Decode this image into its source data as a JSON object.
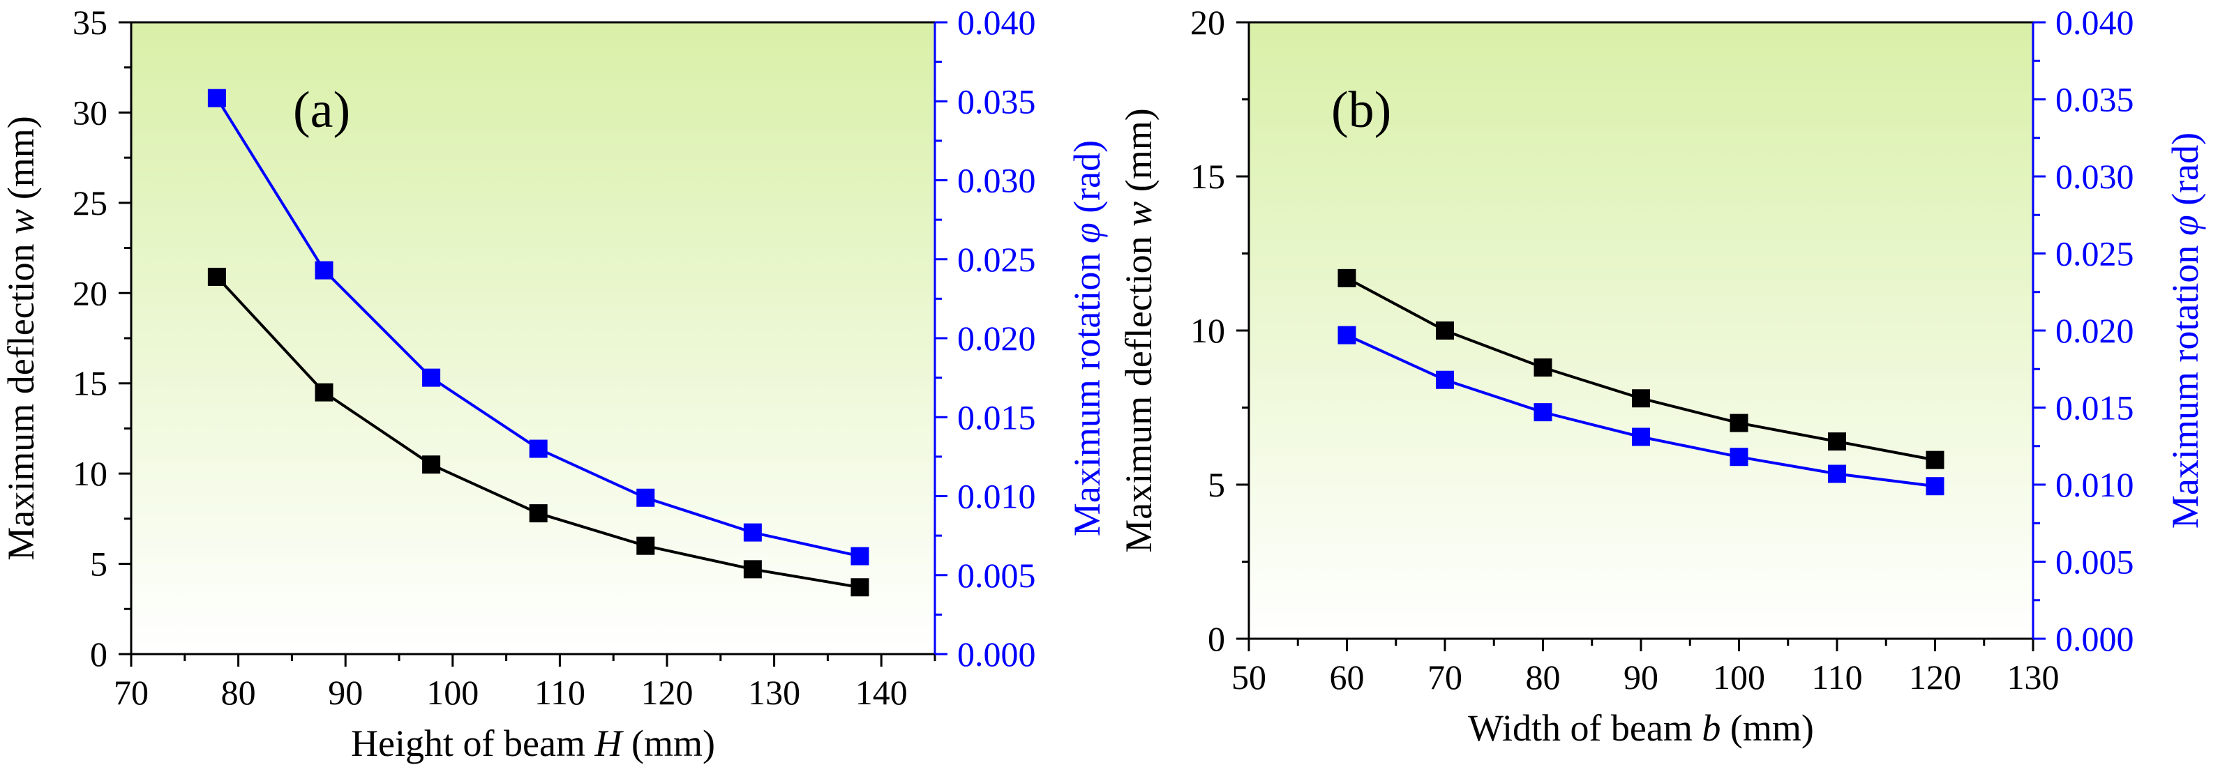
{
  "colors": {
    "left_axis": "#000000",
    "right_axis": "#0000ff",
    "panel_gradient_top": "#d9f0a8",
    "panel_gradient_bottom": "#ffffff"
  },
  "chart_data": [
    {
      "type": "line",
      "panel_label": "(a)",
      "xlabel": "Height of beam H (mm)",
      "xlabel_parts": [
        "Height of beam ",
        "H",
        " (mm)"
      ],
      "ylabel": "Maximum deflection w (mm)",
      "ylabel_parts": [
        "Maximum deflection ",
        "w",
        " (mm)"
      ],
      "y2label": "Maximum rotation φ (rad)",
      "y2label_parts": [
        "Maximum rotation ",
        "φ",
        " (rad)"
      ],
      "xlim": [
        70,
        145
      ],
      "ylim": [
        0,
        35
      ],
      "y2lim": [
        0,
        0.04
      ],
      "xticks": [
        70,
        80,
        90,
        100,
        110,
        120,
        130,
        140
      ],
      "xtick_labels": [
        "70",
        "80",
        "90",
        "100",
        "110",
        "120",
        "130",
        "140"
      ],
      "yticks": [
        0,
        5,
        10,
        15,
        20,
        25,
        30,
        35
      ],
      "ytick_labels": [
        "0",
        "5",
        "10",
        "15",
        "20",
        "25",
        "30",
        "35"
      ],
      "y2ticks": [
        0,
        0.005,
        0.01,
        0.015,
        0.02,
        0.025,
        0.03,
        0.035,
        0.04
      ],
      "y2tick_labels": [
        "0.000",
        "0.005",
        "0.010",
        "0.015",
        "0.020",
        "0.025",
        "0.030",
        "0.035",
        "0.040"
      ],
      "grid": false,
      "x": [
        78,
        88,
        98,
        108,
        118,
        128,
        138
      ],
      "series": [
        {
          "axis": "left",
          "color": "#000000",
          "values": [
            20.9,
            14.5,
            10.5,
            7.8,
            6.0,
            4.7,
            3.7
          ]
        },
        {
          "axis": "right",
          "color": "#0000ff",
          "values": [
            0.0352,
            0.0243,
            0.0175,
            0.013,
            0.0099,
            0.0077,
            0.0062
          ]
        }
      ]
    },
    {
      "type": "line",
      "panel_label": "(b)",
      "xlabel": "Width of beam b (mm)",
      "xlabel_parts": [
        "Width of beam ",
        "b",
        " (mm)"
      ],
      "ylabel": "Maximum deflection w (mm)",
      "ylabel_parts": [
        "Maximum deflection ",
        "w",
        " (mm)"
      ],
      "y2label": "Maximum rotation φ (rad)",
      "y2label_parts": [
        "Maximum rotation ",
        "φ",
        " (rad)"
      ],
      "xlim": [
        50,
        130
      ],
      "ylim": [
        0,
        20
      ],
      "y2lim": [
        0,
        0.04
      ],
      "xticks": [
        50,
        60,
        70,
        80,
        90,
        100,
        110,
        120,
        130
      ],
      "xtick_labels": [
        "50",
        "60",
        "70",
        "80",
        "90",
        "100",
        "110",
        "120",
        "130"
      ],
      "yticks": [
        0,
        5,
        10,
        15,
        20
      ],
      "ytick_labels": [
        "0",
        "5",
        "10",
        "15",
        "20"
      ],
      "y2ticks": [
        0,
        0.005,
        0.01,
        0.015,
        0.02,
        0.025,
        0.03,
        0.035,
        0.04
      ],
      "y2tick_labels": [
        "0.000",
        "0.005",
        "0.010",
        "0.015",
        "0.020",
        "0.025",
        "0.030",
        "0.035",
        "0.040"
      ],
      "grid": false,
      "x": [
        60,
        70,
        80,
        90,
        100,
        110,
        120
      ],
      "series": [
        {
          "axis": "left",
          "color": "#000000",
          "values": [
            11.7,
            10.0,
            8.8,
            7.8,
            7.0,
            6.4,
            5.8
          ]
        },
        {
          "axis": "right",
          "color": "#0000ff",
          "values": [
            0.0197,
            0.0168,
            0.0147,
            0.0131,
            0.0118,
            0.0107,
            0.0099
          ]
        }
      ]
    }
  ]
}
